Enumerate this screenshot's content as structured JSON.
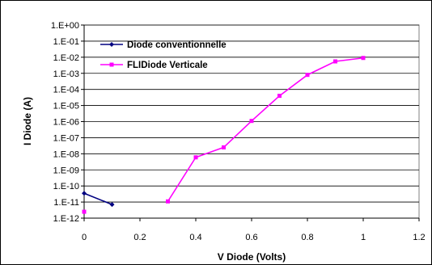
{
  "chart_data": {
    "type": "line",
    "title": "",
    "xlabel": "V Diode (Volts)",
    "ylabel": "I Diode (A)",
    "xlim": [
      0,
      1.2
    ],
    "xticks": [
      "0",
      "0.2",
      "0.4",
      "0.6",
      "0.8",
      "1",
      "1.2"
    ],
    "yscale": "log",
    "ylim_exp": [
      -12,
      0
    ],
    "yticks": [
      "1.E+00",
      "1.E-01",
      "1.E-02",
      "1.E-03",
      "1.E-04",
      "1.E-05",
      "1.E-06",
      "1.E-07",
      "1.E-08",
      "1.E-09",
      "1.E-10",
      "1.E-11",
      "1.E-12"
    ],
    "grid": "horizontal",
    "legend_position": "top-left",
    "series": [
      {
        "name": "Diode conventionnelle",
        "color": "#000080",
        "marker": "diamond",
        "x": [
          0,
          0.1
        ],
        "y": [
          3.5e-11,
          7e-12
        ]
      },
      {
        "name": "FLIDiode Verticale",
        "color": "#ff00ff",
        "marker": "square",
        "x": [
          0,
          0.3,
          0.4,
          0.5,
          0.6,
          0.7,
          0.8,
          0.9,
          1.0
        ],
        "y": [
          2.5e-12,
          1.1e-11,
          6e-09,
          2.5e-08,
          1.1e-06,
          4e-05,
          0.0008,
          0.0055,
          0.009
        ],
        "connect_from_index": 1
      }
    ]
  }
}
